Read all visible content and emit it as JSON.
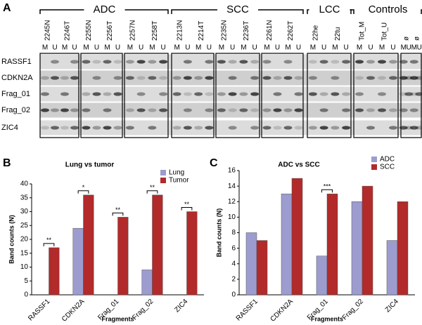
{
  "panel_labels": [
    "A",
    "B",
    "C"
  ],
  "gel": {
    "groups": [
      "ADC",
      "SCC",
      "LCC",
      "Controls"
    ],
    "samples": [
      "2245N",
      "2246T",
      "2255N",
      "2256T",
      "2257N",
      "2258T",
      "2213N",
      "2214T",
      "2235N",
      "2236T",
      "2261N",
      "2262T",
      "22he",
      "22tu",
      "Tot_M",
      "Tot_U",
      "ø",
      "ø"
    ],
    "lanes": [
      "M",
      "U"
    ],
    "rows": [
      "RASSF1",
      "CDKN2A",
      "Frag_01",
      "Frag_02",
      "ZIC4"
    ]
  },
  "chart_data": [
    {
      "type": "bar",
      "title": "Lung vs tumor",
      "x_label": "Fragments",
      "y_label": "Band counts (N)",
      "categories": [
        "RASSF1",
        "CDKN2A",
        "Frag_01",
        "Frag_02",
        "ZIC4"
      ],
      "series": [
        {
          "name": "Lung",
          "color": "#9c9ccf",
          "values": [
            0,
            24,
            0,
            9,
            0
          ]
        },
        {
          "name": "Tumor",
          "color": "#b22a2a",
          "values": [
            17,
            36,
            28,
            36,
            30
          ]
        }
      ],
      "annotations": [
        "**",
        "*",
        "**",
        "**",
        "**"
      ],
      "ylim": [
        0,
        40
      ],
      "yticks": [
        0,
        5,
        10,
        15,
        20,
        25,
        30,
        35,
        40
      ],
      "legend": "upper right"
    },
    {
      "type": "bar",
      "title": "ADC vs SCC",
      "x_label": "Fragments",
      "y_label": "Band counts (N)",
      "categories": [
        "RASSF1",
        "CDKN2A",
        "Frag_01",
        "Frag_02",
        "ZIC4"
      ],
      "series": [
        {
          "name": "ADC",
          "color": "#9c9ccf",
          "values": [
            8,
            13,
            5,
            12,
            7
          ]
        },
        {
          "name": "SCC",
          "color": "#b22a2a",
          "values": [
            7,
            15,
            13,
            14,
            12
          ]
        }
      ],
      "annotations": [
        null,
        null,
        "***",
        null,
        null
      ],
      "ylim": [
        0,
        16
      ],
      "yticks": [
        0,
        2,
        4,
        6,
        8,
        10,
        12,
        14,
        16
      ],
      "legend": "upper right"
    }
  ]
}
